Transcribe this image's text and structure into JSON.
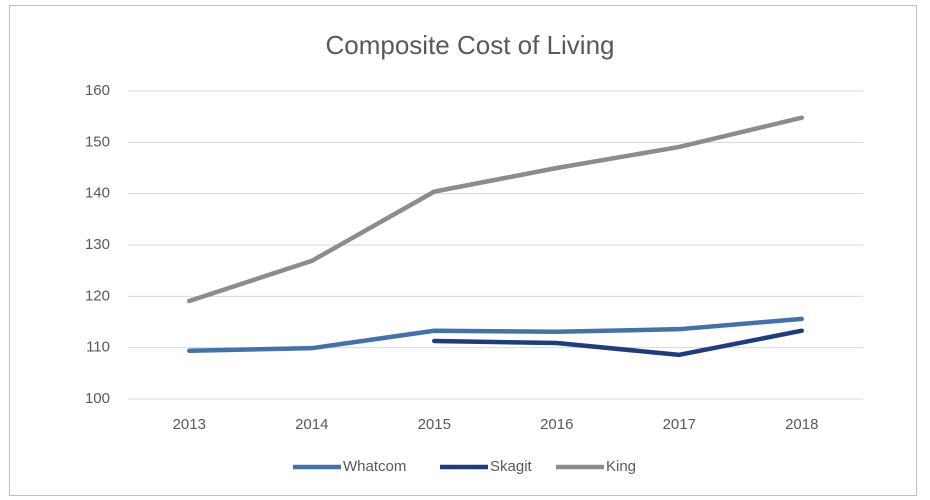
{
  "chart_data": {
    "type": "line",
    "title": "Composite Cost of Living",
    "categories": [
      "2013",
      "2014",
      "2015",
      "2016",
      "2017",
      "2018"
    ],
    "series": [
      {
        "name": "Whatcom",
        "color": "#4472a8",
        "values": [
          109.4,
          109.9,
          113.3,
          113.1,
          113.6,
          115.6
        ]
      },
      {
        "name": "Skagit",
        "color": "#1f3d7a",
        "values": [
          null,
          null,
          111.3,
          110.9,
          108.6,
          113.3
        ]
      },
      {
        "name": "King",
        "color": "#8c8c8c",
        "values": [
          119.1,
          126.9,
          140.4,
          145.0,
          149.1,
          154.8
        ]
      }
    ],
    "ylim": [
      100,
      160
    ],
    "yticks": [
      100,
      110,
      120,
      130,
      140,
      150,
      160
    ],
    "grid": true,
    "legend": "bottom"
  }
}
